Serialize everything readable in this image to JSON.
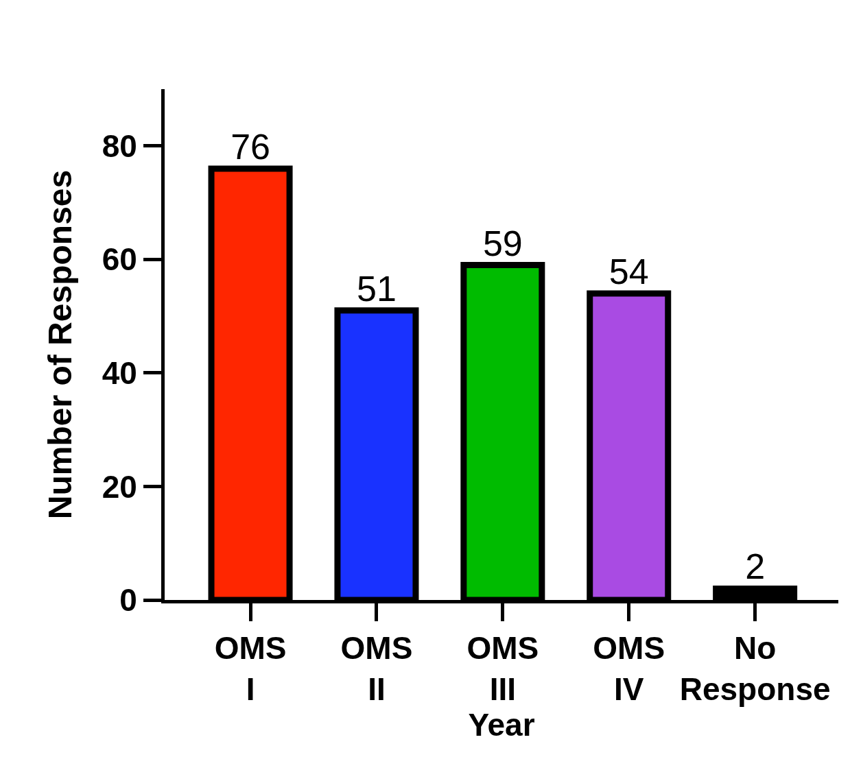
{
  "chart_data": {
    "type": "bar",
    "xlabel": "Year",
    "ylabel": "Number of Responses",
    "categories": [
      "OMS I",
      "OMS II",
      "OMS III",
      "OMS IV",
      "No Response"
    ],
    "values": [
      76,
      51,
      59,
      54,
      2
    ],
    "colors": [
      "#ff2600",
      "#1932ff",
      "#00bb00",
      "#a94be3",
      "#000000"
    ],
    "ylim": [
      0,
      90
    ],
    "yticks": [
      0,
      20,
      40,
      60,
      80
    ],
    "data_labels": true
  }
}
